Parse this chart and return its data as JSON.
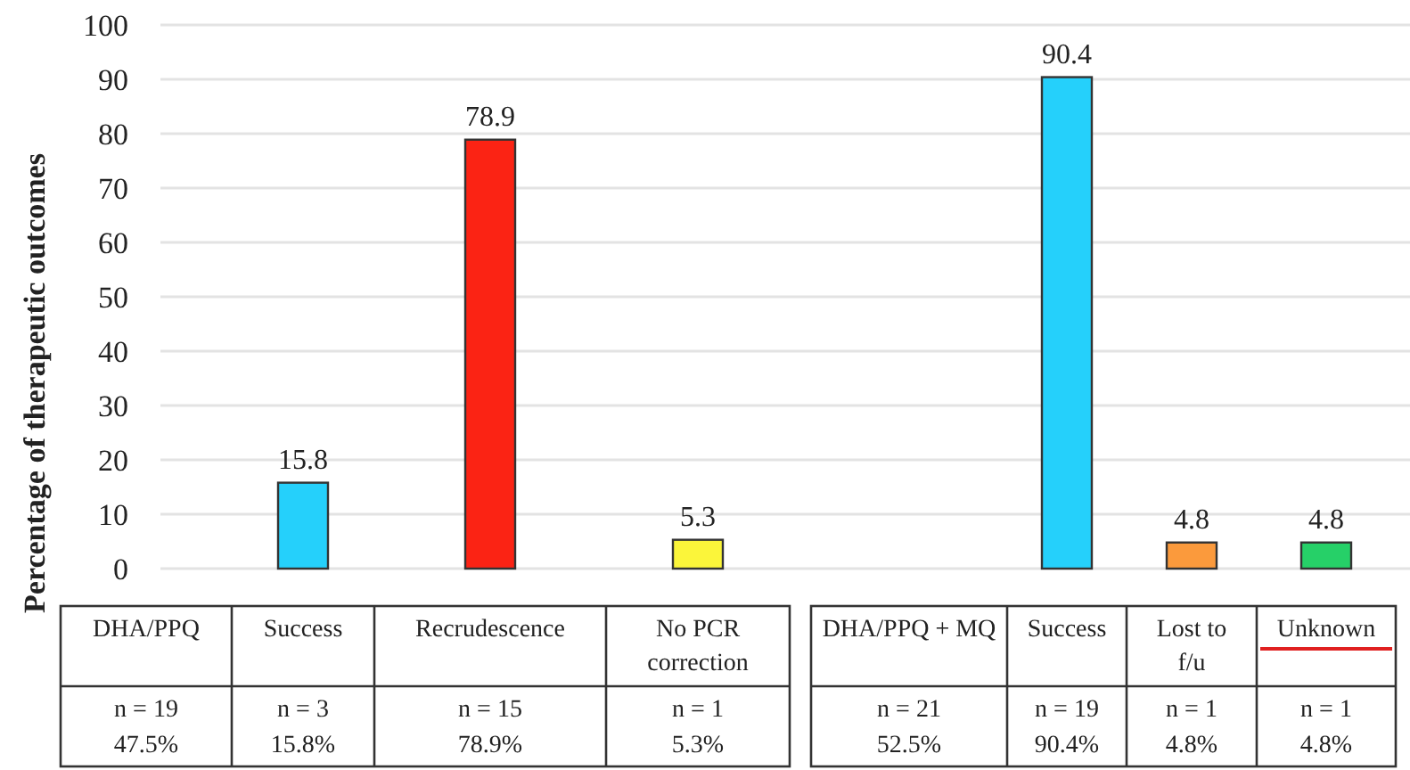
{
  "chart_data": {
    "type": "bar",
    "ylabel": "Percentage of therapeutic outcomes",
    "categories": [
      "DHA/PPQ",
      "Success",
      "Recrudescence",
      "No PCR correction",
      "DHA/PPQ + MQ",
      "Success",
      "Lost to f/u",
      "Unknown"
    ],
    "values": [
      null,
      15.8,
      78.9,
      5.3,
      null,
      90.4,
      4.8,
      4.8
    ],
    "colors": [
      null,
      "#25d0fb",
      "#fb2314",
      "#fbf53a",
      null,
      "#25d0fb",
      "#fb9a3c",
      "#26d068"
    ],
    "ylim": [
      0,
      100
    ],
    "yticks": [
      0,
      10,
      20,
      30,
      40,
      50,
      60,
      70,
      80,
      90,
      100
    ],
    "grid": "y",
    "data_labels": true,
    "annotations": [
      "n = 19\n47.5%",
      "n = 3\n15.8%",
      "n = 15\n78.9%",
      "n = 1\n5.3%",
      "n = 21\n52.5%",
      "n = 19\n90.4%",
      "n = 1\n4.8%",
      "n = 1\n4.8%"
    ]
  }
}
